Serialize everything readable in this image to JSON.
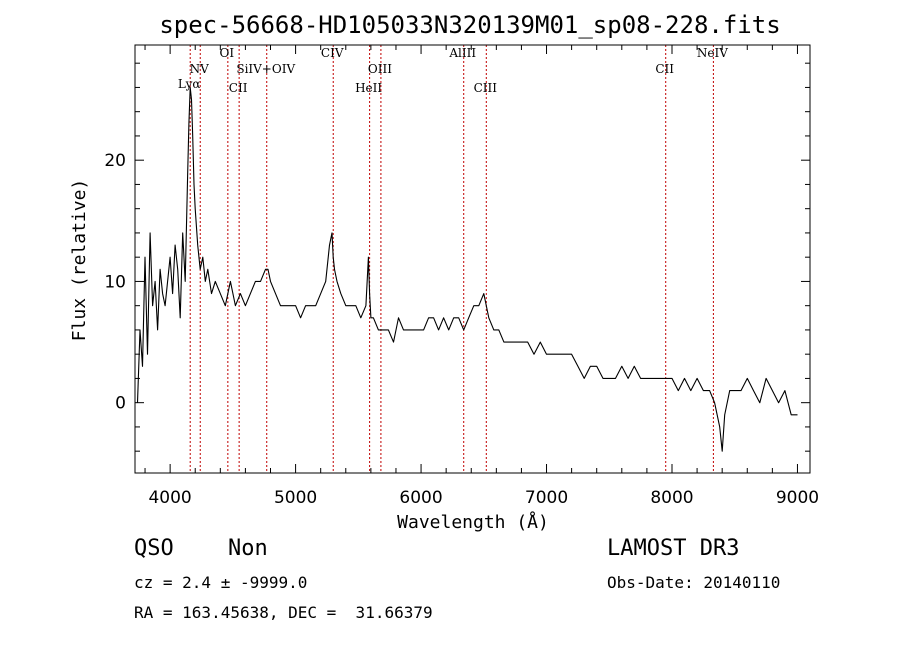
{
  "chart_data": {
    "type": "line",
    "title": "spec-56668-HD105033N320139M01_sp08-228.fits",
    "xlabel": "Wavelength (Å)",
    "ylabel": "Flux (relative)",
    "xlim": [
      3720,
      9100
    ],
    "ylim": [
      -5.8,
      29.5
    ],
    "xticks": [
      4000,
      5000,
      6000,
      7000,
      8000,
      9000
    ],
    "yticks": [
      0,
      10,
      20
    ],
    "grid": false,
    "series": [
      {
        "x": [
          3740,
          3760,
          3780,
          3800,
          3820,
          3840,
          3860,
          3880,
          3900,
          3920,
          3940,
          3960,
          3980,
          4000,
          4020,
          4040,
          4060,
          4080,
          4100,
          4120,
          4140,
          4150,
          4160,
          4170,
          4180,
          4190,
          4200,
          4220,
          4240,
          4260,
          4280,
          4300,
          4330,
          4360,
          4400,
          4440,
          4480,
          4520,
          4560,
          4600,
          4640,
          4680,
          4720,
          4760,
          4780,
          4800,
          4840,
          4880,
          4920,
          4960,
          5000,
          5040,
          5080,
          5120,
          5160,
          5200,
          5240,
          5270,
          5290,
          5300,
          5310,
          5330,
          5360,
          5400,
          5440,
          5480,
          5520,
          5560,
          5580,
          5590,
          5600,
          5620,
          5660,
          5700,
          5740,
          5780,
          5820,
          5860,
          5900,
          5940,
          5980,
          6020,
          6060,
          6100,
          6140,
          6180,
          6220,
          6260,
          6300,
          6340,
          6380,
          6420,
          6460,
          6500,
          6520,
          6540,
          6580,
          6620,
          6660,
          6700,
          6750,
          6800,
          6850,
          6900,
          6950,
          7000,
          7050,
          7100,
          7150,
          7200,
          7250,
          7300,
          7350,
          7400,
          7450,
          7500,
          7550,
          7600,
          7650,
          7700,
          7750,
          7800,
          7850,
          7900,
          7950,
          8000,
          8050,
          8100,
          8150,
          8200,
          8250,
          8300,
          8340,
          8380,
          8400,
          8420,
          8460,
          8500,
          8550,
          8600,
          8650,
          8700,
          8750,
          8800,
          8850,
          8900,
          8950,
          9000
        ],
        "y": [
          0,
          6,
          3,
          12,
          4,
          14,
          8,
          10,
          6,
          11,
          9,
          8,
          10,
          12,
          9,
          13,
          11,
          7,
          14,
          10,
          19,
          23,
          26,
          25,
          22,
          18,
          16,
          13,
          11,
          12,
          10,
          11,
          9,
          10,
          9,
          8,
          10,
          8,
          9,
          8,
          9,
          10,
          10,
          11,
          11,
          10,
          9,
          8,
          8,
          8,
          8,
          7,
          8,
          8,
          8,
          9,
          10,
          13,
          14,
          12,
          11,
          10,
          9,
          8,
          8,
          8,
          7,
          8,
          12,
          9,
          7,
          7,
          6,
          6,
          6,
          5,
          7,
          6,
          6,
          6,
          6,
          6,
          7,
          7,
          6,
          7,
          6,
          7,
          7,
          6,
          7,
          8,
          8,
          9,
          8,
          7,
          6,
          6,
          5,
          5,
          5,
          5,
          5,
          4,
          5,
          4,
          4,
          4,
          4,
          4,
          3,
          2,
          3,
          3,
          2,
          2,
          2,
          3,
          2,
          3,
          2,
          2,
          2,
          2,
          2,
          2,
          1,
          2,
          1,
          2,
          1,
          1,
          0,
          -2,
          -4,
          -1,
          1,
          1,
          1,
          2,
          1,
          0,
          2,
          1,
          0,
          1,
          -1,
          -1
        ]
      }
    ],
    "lines": [
      {
        "label": "Lyα",
        "x": 4160
      },
      {
        "label": "NV",
        "x": 4240
      },
      {
        "label": "OI",
        "x": 4460
      },
      {
        "label": "CII",
        "x": 4550
      },
      {
        "label": "SiIV+OIV",
        "x": 4770
      },
      {
        "label": "CIV",
        "x": 5300
      },
      {
        "label": "HeII",
        "x": 5590
      },
      {
        "label": "OIII",
        "x": 5680
      },
      {
        "label": "AlIII",
        "x": 6340
      },
      {
        "label": "CIII",
        "x": 6520
      },
      {
        "label": "CII",
        "x": 7950
      },
      {
        "label": "NeIV",
        "x": 8330
      }
    ],
    "colors": {
      "spectrum": "#000000",
      "lines": "#c00000",
      "frame": "#000000"
    }
  },
  "info": {
    "class": "QSO",
    "subclass": "Non",
    "survey": "LAMOST DR3",
    "cz": "cz = 2.4 ± -9999.0",
    "obs_date": "Obs-Date: 20140110",
    "radec": "RA = 163.45638, DEC =  31.66379"
  }
}
